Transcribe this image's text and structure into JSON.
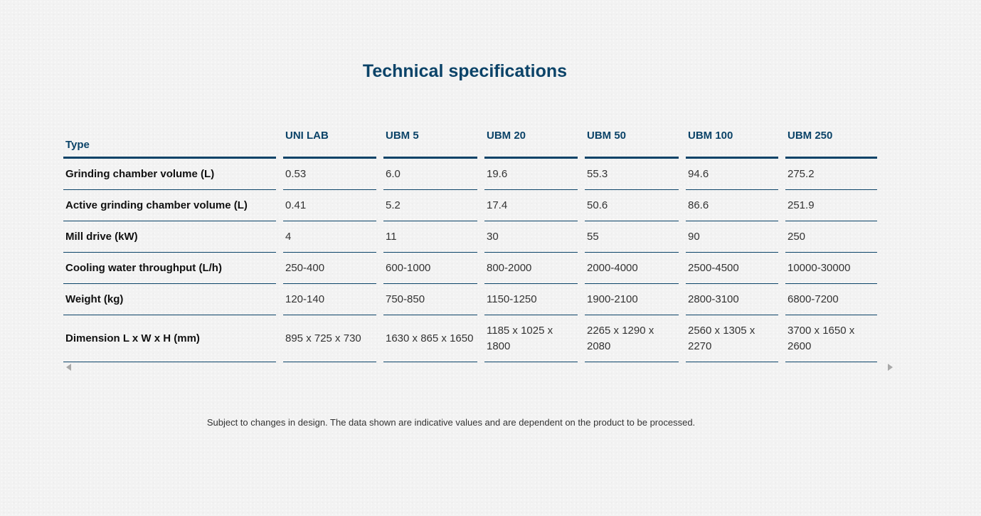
{
  "page": {
    "title": "Technical specifications",
    "disclaimer": "Subject to changes in design. The data shown are indicative values and are dependent on the product to be processed.",
    "accent_color": "#0b4368",
    "scroll_left_icon": "caret-left-icon",
    "scroll_right_icon": "caret-right-icon"
  },
  "table": {
    "type_header": "Type",
    "models": [
      "UNI LAB",
      "UBM 5",
      "UBM 20",
      "UBM 50",
      "UBM 100",
      "UBM 250"
    ],
    "rows": [
      {
        "label": "Grinding chamber volume (L)",
        "values": [
          "0.53",
          "6.0",
          "19.6",
          "55.3",
          "94.6",
          "275.2"
        ]
      },
      {
        "label": "Active grinding chamber volume (L)",
        "values": [
          "0.41",
          "5.2",
          "17.4",
          "50.6",
          "86.6",
          "251.9"
        ]
      },
      {
        "label": "Mill drive (kW)",
        "values": [
          "4",
          "11",
          "30",
          "55",
          "90",
          "250"
        ]
      },
      {
        "label": "Cooling water throughput (L/h)",
        "values": [
          "250-400",
          "600-1000",
          "800-2000",
          "2000-4000",
          "2500-4500",
          "10000-30000"
        ]
      },
      {
        "label": "Weight (kg)",
        "values": [
          "120-140",
          "750-850",
          "1150-1250",
          "1900-2100",
          "2800-3100",
          "6800-7200"
        ]
      },
      {
        "label": "Dimension L x W x H (mm)",
        "values": [
          "895 x 725 x 730",
          "1630 x 865 x 1650",
          "1185 x 1025 x 1800",
          "2265 x 1290 x 2080",
          "2560 x 1305 x 2270",
          "3700 x 1650 x 2600"
        ]
      }
    ]
  }
}
